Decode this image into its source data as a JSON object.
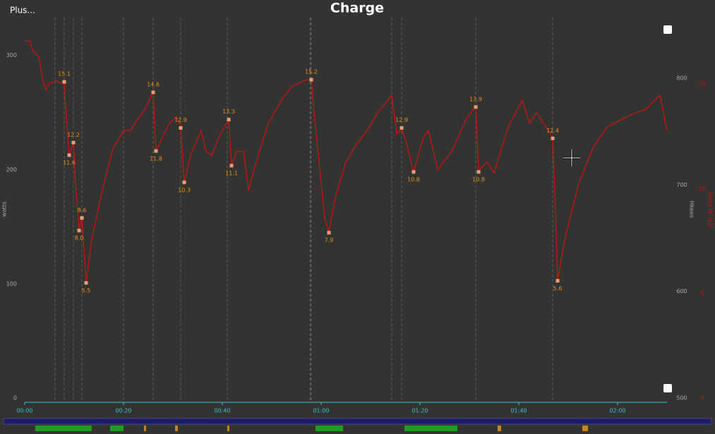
{
  "chart_data": {
    "type": "line",
    "title": "Charge",
    "menu": "Plus...",
    "ylabel": "watts",
    "y2label": "Skiba W' (kJ)",
    "y3label": "Hkees",
    "xlim": [
      0,
      130
    ],
    "xticks": [
      {
        "value": 0,
        "label": "00:00"
      },
      {
        "value": 20,
        "label": "00:20"
      },
      {
        "value": 40,
        "label": "00:40"
      },
      {
        "value": 60,
        "label": "01:00"
      },
      {
        "value": 80,
        "label": "01:20"
      },
      {
        "value": 100,
        "label": "01:40"
      },
      {
        "value": 120,
        "label": "02:00"
      }
    ],
    "ylim": [
      0,
      330
    ],
    "yticks": [
      0,
      100,
      200,
      300
    ],
    "y2lim": [
      0,
      18
    ],
    "y2ticks": [
      0,
      5,
      10,
      15
    ],
    "y3lim": [
      500,
      853.6
    ],
    "y3ticks": [
      500,
      600,
      700,
      800
    ],
    "vlines": [
      6.14,
      8.0,
      9.86,
      11.57,
      20.0,
      26.0,
      31.57,
      41.0,
      57.86,
      74.29,
      76.29,
      91.29,
      106.86
    ],
    "series": [
      {
        "color": "#cc1111",
        "axis": "y2",
        "x": [
          0,
          1.14,
          1.43,
          2.86,
          3.57,
          4.29,
          5.0,
          6.43,
          7.14,
          8.0,
          8.14,
          9.0,
          9.86,
          10.29,
          11.0,
          11.57,
          12.43,
          13.57,
          15.71,
          17.86,
          20.0,
          21.43,
          22.86,
          24.29,
          26.0,
          26.57,
          27.86,
          29.29,
          30.71,
          31.57,
          32.29,
          33.57,
          35.71,
          36.71,
          37.86,
          39.29,
          41.29,
          41.86,
          42.86,
          44.29,
          45.29,
          46.43,
          49.29,
          52.14,
          54.14,
          56.43,
          58.0,
          58.57,
          60.0,
          60.71,
          61.57,
          62.86,
          65.0,
          67.14,
          69.29,
          71.43,
          74.29,
          75.29,
          76.29,
          77.14,
          78.71,
          80.71,
          81.71,
          83.57,
          86.43,
          89.29,
          91.29,
          91.86,
          93.57,
          95.0,
          97.86,
          100.71,
          102.14,
          103.57,
          105.71,
          106.86,
          107.43,
          107.86,
          109.29,
          112.14,
          115.0,
          117.86,
          120.71,
          123.57,
          125.71,
          128.57,
          129.29,
          130.0
        ],
        "values": [
          17.05,
          17.05,
          16.65,
          16.31,
          15.3,
          14.7,
          15.04,
          15.14,
          15.04,
          15.14,
          14.46,
          11.57,
          12.18,
          10.26,
          8.04,
          8.64,
          5.55,
          7.57,
          9.92,
          11.94,
          12.78,
          12.78,
          13.29,
          13.79,
          14.6,
          11.81,
          12.45,
          13.12,
          13.45,
          12.98,
          10.29,
          11.6,
          12.78,
          11.77,
          11.6,
          12.45,
          13.32,
          11.1,
          11.77,
          11.77,
          9.92,
          10.93,
          13.12,
          14.3,
          14.9,
          15.14,
          15.27,
          13.62,
          10.26,
          8.58,
          7.94,
          9.59,
          11.27,
          12.11,
          12.78,
          13.62,
          14.46,
          12.61,
          12.88,
          12.28,
          10.8,
          12.45,
          12.78,
          10.93,
          11.77,
          13.29,
          13.96,
          10.86,
          11.27,
          10.76,
          12.95,
          14.23,
          13.12,
          13.62,
          12.88,
          12.41,
          8.91,
          5.62,
          7.57,
          10.26,
          11.94,
          12.95,
          13.29,
          13.62,
          13.79,
          14.46,
          13.62,
          12.78
        ]
      },
      {
        "color": "#e8a070",
        "axis": "y2",
        "x": [
          8.0,
          9.0,
          9.86,
          11.0,
          11.57,
          12.43,
          26.0,
          26.57,
          31.57,
          32.29,
          41.29,
          41.86,
          58.0,
          61.57,
          76.29,
          78.71,
          91.29,
          91.86,
          106.86,
          107.86
        ],
        "values": [
          15.1,
          11.6,
          12.2,
          8.0,
          8.6,
          5.5,
          14.6,
          11.8,
          12.9,
          10.3,
          13.3,
          11.1,
          15.2,
          7.9,
          12.9,
          10.8,
          13.9,
          10.8,
          12.4,
          5.6
        ],
        "value_labels": [
          "15.1",
          "11.6",
          "12.2",
          "8.0",
          "8.6",
          "5.5",
          "14.6",
          "11.8",
          "12.9",
          "10.3",
          "13.3",
          "11.1",
          "15.2",
          "7.9",
          "12.9",
          "10.8",
          "13.9",
          "10.8",
          "12.4",
          "5.6"
        ]
      }
    ]
  }
}
